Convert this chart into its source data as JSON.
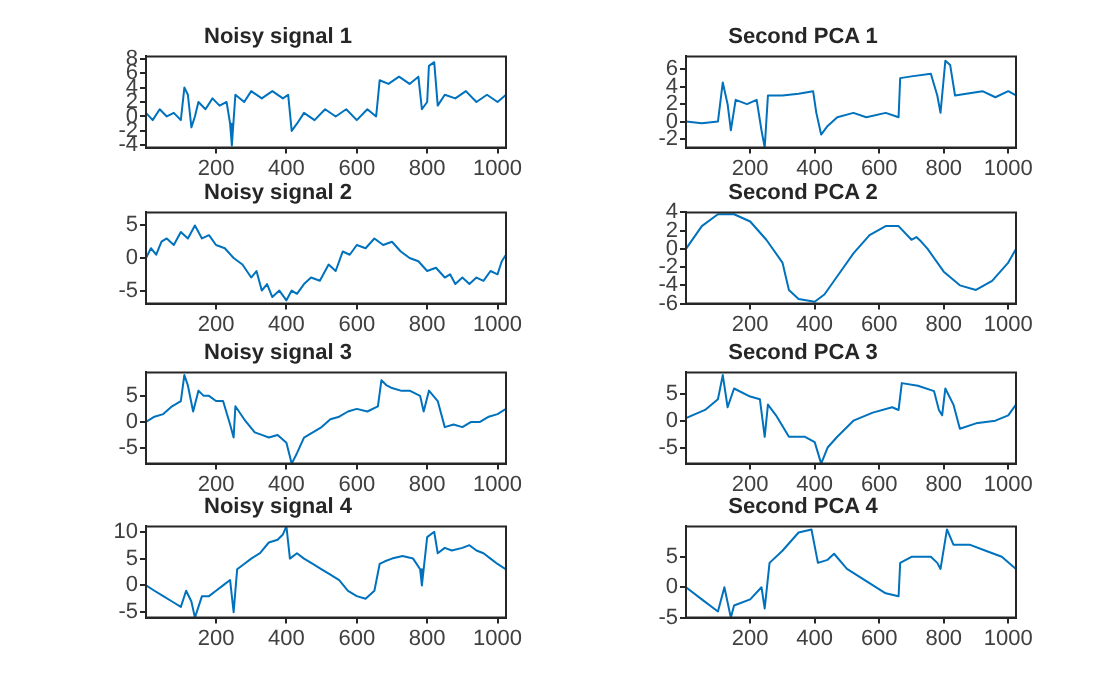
{
  "chart_data": [
    {
      "type": "line",
      "title": "Noisy signal 1",
      "xlim": [
        1,
        1024
      ],
      "xticks": [
        200,
        400,
        600,
        800,
        1000
      ],
      "ylim": [
        -4.3,
        8.3
      ],
      "yticks": [
        -4,
        -2,
        0,
        2,
        4,
        6,
        8
      ],
      "grid": false,
      "x": [
        1,
        20,
        40,
        60,
        80,
        100,
        110,
        120,
        130,
        140,
        150,
        170,
        190,
        210,
        230,
        240,
        245,
        255,
        280,
        300,
        330,
        360,
        390,
        405,
        415,
        430,
        450,
        480,
        510,
        540,
        570,
        600,
        630,
        655,
        665,
        690,
        720,
        750,
        775,
        785,
        800,
        805,
        820,
        830,
        850,
        880,
        910,
        940,
        970,
        1000,
        1024
      ],
      "series": [
        {
          "color": "#0072bd",
          "values": [
            0.5,
            -0.5,
            1,
            0,
            0.5,
            -0.5,
            4,
            3,
            -1.5,
            0,
            2,
            1,
            2.5,
            1.5,
            2,
            -1,
            -4,
            3,
            2,
            3.5,
            2.5,
            3.5,
            2.5,
            3,
            -2,
            -1,
            0.5,
            -0.5,
            1,
            0,
            1,
            -0.5,
            1,
            0,
            5,
            4.5,
            5.5,
            4.5,
            5.5,
            1,
            2,
            7,
            7.5,
            1.5,
            3,
            2.5,
            3.5,
            2,
            3,
            2,
            3
          ]
        }
      ]
    },
    {
      "type": "line",
      "title": "Second PCA 1",
      "xlim": [
        1,
        1024
      ],
      "xticks": [
        200,
        400,
        600,
        800,
        1000
      ],
      "ylim": [
        -3,
        7.5
      ],
      "yticks": [
        -2,
        0,
        2,
        4,
        6
      ],
      "grid": false,
      "x": [
        1,
        50,
        100,
        115,
        130,
        140,
        155,
        190,
        220,
        235,
        245,
        255,
        300,
        350,
        395,
        405,
        420,
        440,
        470,
        520,
        560,
        620,
        660,
        665,
        700,
        760,
        780,
        790,
        805,
        820,
        835,
        870,
        920,
        960,
        1000,
        1024
      ],
      "series": [
        {
          "color": "#0072bd",
          "values": [
            0,
            -0.2,
            0,
            4.5,
            2,
            -1,
            2.5,
            2,
            2.5,
            -1,
            -3,
            3,
            3,
            3.2,
            3.5,
            1,
            -1.5,
            -0.5,
            0.5,
            1,
            0.5,
            1,
            0.5,
            5,
            5.2,
            5.5,
            3,
            1,
            7,
            6.5,
            3,
            3.2,
            3.5,
            2.8,
            3.5,
            3
          ]
        }
      ]
    },
    {
      "type": "line",
      "title": "Noisy signal 2",
      "xlim": [
        1,
        1024
      ],
      "xticks": [
        200,
        400,
        600,
        800,
        1000
      ],
      "ylim": [
        -7,
        7
      ],
      "yticks": [
        -5,
        0,
        5
      ],
      "grid": false,
      "x": [
        1,
        15,
        30,
        45,
        60,
        80,
        100,
        120,
        140,
        160,
        180,
        200,
        225,
        250,
        275,
        300,
        315,
        330,
        345,
        360,
        380,
        400,
        415,
        430,
        450,
        470,
        495,
        520,
        540,
        560,
        580,
        600,
        625,
        650,
        675,
        700,
        725,
        750,
        775,
        800,
        825,
        850,
        865,
        880,
        900,
        920,
        940,
        960,
        980,
        1000,
        1012,
        1024
      ],
      "series": [
        {
          "color": "#0072bd",
          "values": [
            0,
            1.5,
            0.5,
            2.5,
            3,
            2,
            4,
            3,
            5,
            3,
            3.5,
            2,
            1.5,
            0,
            -1,
            -3,
            -2,
            -5,
            -4,
            -6,
            -5,
            -6.5,
            -5,
            -5.5,
            -4,
            -3,
            -3.5,
            -1,
            -2,
            1,
            0.5,
            2,
            1.5,
            3,
            2,
            2.5,
            1,
            0,
            -0.5,
            -2,
            -1.5,
            -3,
            -2.5,
            -4,
            -3,
            -4,
            -3,
            -3.5,
            -2,
            -2.5,
            -0.5,
            0.5
          ]
        }
      ]
    },
    {
      "type": "line",
      "title": "Second PCA 2",
      "xlim": [
        1,
        1024
      ],
      "xticks": [
        200,
        400,
        600,
        800,
        1000
      ],
      "ylim": [
        -6,
        4
      ],
      "yticks": [
        -6,
        -4,
        -2,
        0,
        2,
        4
      ],
      "grid": false,
      "x": [
        1,
        50,
        100,
        150,
        200,
        250,
        300,
        320,
        350,
        400,
        430,
        470,
        520,
        570,
        620,
        660,
        700,
        715,
        730,
        750,
        800,
        850,
        900,
        950,
        1000,
        1024
      ],
      "series": [
        {
          "color": "#0072bd",
          "values": [
            0,
            2.5,
            3.8,
            3.8,
            3,
            1,
            -1.5,
            -4.5,
            -5.5,
            -5.8,
            -5,
            -3,
            -0.5,
            1.5,
            2.5,
            2.5,
            1,
            1.3,
            0.8,
            0,
            -2.5,
            -4,
            -4.5,
            -3.5,
            -1.5,
            0
          ]
        }
      ]
    },
    {
      "type": "line",
      "title": "Noisy signal 3",
      "xlim": [
        1,
        1024
      ],
      "xticks": [
        200,
        400,
        600,
        800,
        1000
      ],
      "ylim": [
        -8,
        9.5
      ],
      "yticks": [
        -5,
        0,
        5
      ],
      "grid": false,
      "x": [
        1,
        25,
        50,
        75,
        100,
        110,
        120,
        135,
        150,
        165,
        180,
        200,
        220,
        240,
        250,
        255,
        280,
        310,
        330,
        350,
        375,
        400,
        415,
        430,
        450,
        475,
        500,
        525,
        550,
        575,
        600,
        630,
        660,
        670,
        685,
        700,
        725,
        750,
        780,
        790,
        805,
        830,
        850,
        875,
        900,
        925,
        950,
        975,
        1000,
        1024
      ],
      "series": [
        {
          "color": "#0072bd",
          "values": [
            0,
            1,
            1.5,
            3,
            4,
            9,
            7,
            2,
            6,
            5,
            5,
            4,
            4,
            -0.5,
            -3,
            3,
            0.5,
            -2,
            -2.5,
            -3,
            -2.5,
            -4,
            -8,
            -6,
            -3,
            -2,
            -1,
            0.5,
            1,
            2,
            2.5,
            2,
            3,
            8,
            7,
            6.5,
            6,
            6,
            5,
            2,
            6,
            4,
            -1,
            -0.5,
            -1,
            0,
            0,
            1,
            1.5,
            2.5
          ]
        }
      ]
    },
    {
      "type": "line",
      "title": "Second PCA 3",
      "xlim": [
        1,
        1024
      ],
      "xticks": [
        200,
        400,
        600,
        800,
        1000
      ],
      "ylim": [
        -8,
        9
      ],
      "yticks": [
        -5,
        0,
        5
      ],
      "grid": false,
      "x": [
        1,
        60,
        100,
        115,
        130,
        150,
        200,
        230,
        245,
        255,
        280,
        320,
        370,
        400,
        420,
        440,
        470,
        520,
        580,
        640,
        660,
        670,
        720,
        770,
        785,
        795,
        805,
        830,
        850,
        900,
        960,
        1000,
        1024
      ],
      "series": [
        {
          "color": "#0072bd",
          "values": [
            0.5,
            2,
            4,
            8.5,
            2.5,
            6,
            4.5,
            4,
            -3,
            3,
            1,
            -3,
            -3,
            -4,
            -8,
            -5,
            -3,
            0,
            1.5,
            2.5,
            2,
            7,
            6.5,
            5.5,
            2,
            1,
            6,
            3,
            -1.5,
            -0.5,
            0,
            1,
            3
          ]
        }
      ]
    },
    {
      "type": "line",
      "title": "Noisy signal 4",
      "xlim": [
        1,
        1024
      ],
      "xticks": [
        200,
        400,
        600,
        800,
        1000
      ],
      "ylim": [
        -6,
        11
      ],
      "yticks": [
        -5,
        0,
        5,
        10
      ],
      "grid": false,
      "x": [
        1,
        25,
        50,
        75,
        100,
        115,
        130,
        140,
        160,
        180,
        200,
        220,
        240,
        250,
        260,
        280,
        300,
        325,
        350,
        375,
        390,
        400,
        410,
        430,
        450,
        475,
        500,
        525,
        550,
        575,
        600,
        625,
        650,
        665,
        680,
        700,
        730,
        760,
        780,
        785,
        800,
        820,
        830,
        850,
        870,
        900,
        920,
        940,
        960,
        980,
        1000,
        1024
      ],
      "series": [
        {
          "color": "#0072bd",
          "values": [
            0,
            -1,
            -2,
            -3,
            -4,
            -1,
            -3,
            -6,
            -2,
            -2,
            -1,
            0,
            1,
            -5,
            3,
            4,
            5,
            6,
            8,
            8.5,
            9.5,
            11,
            5,
            6,
            5,
            4,
            3,
            2,
            1,
            -1,
            -2,
            -2.5,
            -1,
            4,
            4.5,
            5,
            5.5,
            5,
            3,
            0,
            9,
            10,
            6,
            7,
            6.5,
            7,
            7.5,
            6.5,
            6,
            5,
            4,
            3
          ]
        }
      ]
    },
    {
      "type": "line",
      "title": "Second PCA 4",
      "xlim": [
        1,
        1024
      ],
      "xticks": [
        200,
        400,
        600,
        800,
        1000
      ],
      "ylim": [
        -5,
        10
      ],
      "yticks": [
        -5,
        0,
        5
      ],
      "grid": false,
      "x": [
        1,
        50,
        100,
        120,
        140,
        150,
        200,
        235,
        245,
        260,
        300,
        350,
        390,
        410,
        440,
        460,
        500,
        560,
        620,
        660,
        665,
        700,
        760,
        780,
        790,
        810,
        830,
        880,
        930,
        980,
        1024
      ],
      "series": [
        {
          "color": "#0072bd",
          "values": [
            0,
            -2,
            -4,
            0,
            -5,
            -3,
            -2,
            0,
            -3.5,
            4,
            6,
            9,
            9.5,
            4,
            4.5,
            5.5,
            3,
            1,
            -1,
            -1.5,
            4,
            5,
            5,
            4,
            3,
            9.5,
            7,
            7,
            6,
            5,
            3
          ]
        }
      ]
    }
  ]
}
